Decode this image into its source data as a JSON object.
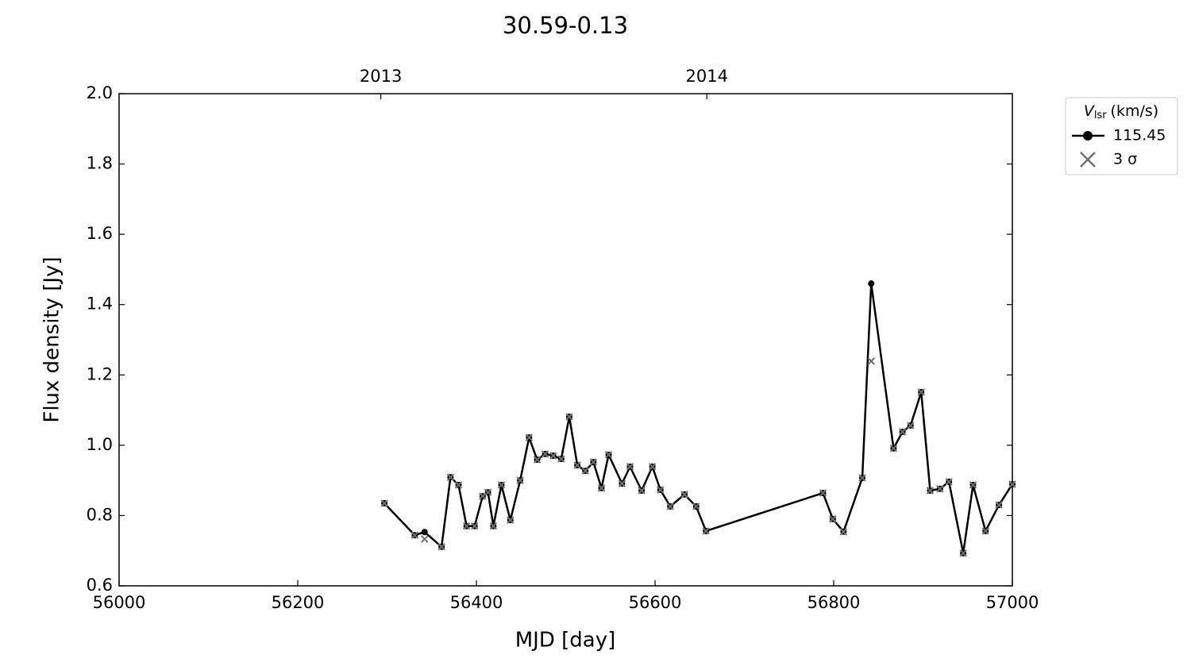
{
  "chart_data": {
    "type": "line",
    "title": "30.59-0.13",
    "xlabel": "MJD [day]",
    "ylabel": "Flux density [Jy]",
    "xlim": [
      56000,
      57000
    ],
    "xticks": [
      56000,
      56200,
      56400,
      56600,
      56800,
      57000
    ],
    "top_xticks": [
      {
        "value": 56293,
        "label": "2013"
      },
      {
        "value": 56658,
        "label": "2014"
      }
    ],
    "ylim": [
      0.6,
      2.0
    ],
    "yticks": [
      0.6,
      0.8,
      {
        "value": 1,
        "label": "1.0"
      },
      1.2,
      1.4,
      1.6,
      1.8,
      {
        "value": 2,
        "label": "2.0"
      }
    ],
    "legend_title": {
      "symbol": "V",
      "subscript": "lsr",
      "unit": "(km/s)"
    },
    "legend_position": "outside-upper-right",
    "x": [
      56297,
      56331,
      56342,
      56361,
      56371,
      56380,
      56389,
      56398,
      56407,
      56413,
      56419,
      56428,
      56438,
      56449,
      56459,
      56468,
      56477,
      56486,
      56495,
      56504,
      56513,
      56522,
      56531,
      56540,
      56548,
      56563,
      56572,
      56585,
      56597,
      56606,
      56617,
      56633,
      56646,
      56657,
      56788,
      56799,
      56811,
      56832,
      56842,
      56867,
      56877,
      56886,
      56898,
      56908,
      56919,
      56929,
      56945,
      56956,
      56970,
      56985,
      57000
    ],
    "series": [
      {
        "name": "115.45",
        "color": "#000000",
        "style": "line-marker",
        "values": [
          0.835,
          0.744,
          0.753,
          0.711,
          0.909,
          0.887,
          0.77,
          0.77,
          0.855,
          0.866,
          0.77,
          0.887,
          0.787,
          0.9,
          1.022,
          0.959,
          0.975,
          0.97,
          0.961,
          1.081,
          0.943,
          0.927,
          0.952,
          0.878,
          0.973,
          0.891,
          0.939,
          0.871,
          0.939,
          0.873,
          0.826,
          0.86,
          0.826,
          0.756,
          0.864,
          0.79,
          0.754,
          0.907,
          1.46,
          0.991,
          1.038,
          1.056,
          1.151,
          0.871,
          0.876,
          0.896,
          0.693,
          0.887,
          0.756,
          0.83,
          0.889
        ]
      },
      {
        "name": "3 σ",
        "color": "#707070",
        "style": "cross",
        "values": [
          0.835,
          0.744,
          0.733,
          0.711,
          0.909,
          0.887,
          0.77,
          0.77,
          0.855,
          0.866,
          0.77,
          0.887,
          0.787,
          0.9,
          1.022,
          0.959,
          0.975,
          0.97,
          0.961,
          1.081,
          0.943,
          0.927,
          0.952,
          0.878,
          0.973,
          0.891,
          0.939,
          0.871,
          0.939,
          0.873,
          0.826,
          0.86,
          0.826,
          0.756,
          0.864,
          0.79,
          0.754,
          0.907,
          1.239,
          0.991,
          1.038,
          1.056,
          1.151,
          0.871,
          0.876,
          0.896,
          0.693,
          0.887,
          0.756,
          0.83,
          0.889
        ]
      }
    ]
  }
}
